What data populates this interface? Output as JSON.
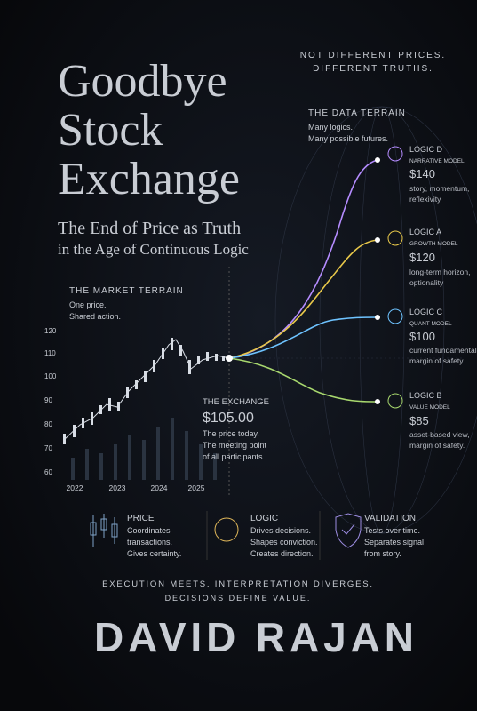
{
  "tagline": [
    "NOT DIFFERENT PRICES.",
    "DIFFERENT TRUTHS."
  ],
  "title": [
    "Goodbye",
    "Stock",
    "Exchange"
  ],
  "subtitle": [
    "The End of Price as Truth",
    "in the Age of Continuous Logic"
  ],
  "data_terrain": {
    "heading": "THE DATA TERRAIN",
    "lines": [
      "Many logics.",
      "Many possible futures."
    ]
  },
  "market_terrain": {
    "heading": "THE MARKET TERRAIN",
    "lines": [
      "One price.",
      "Shared action."
    ]
  },
  "mini_chart": {
    "yticks": [
      120,
      110,
      100,
      90,
      80,
      70,
      60
    ],
    "xlabels": [
      "2022",
      "2023",
      "2024",
      "2025"
    ]
  },
  "exchange": {
    "heading": "THE EXCHANGE",
    "price": "$105.00",
    "lines": [
      "The price today.",
      "The meeting point",
      "of all participants."
    ]
  },
  "logics": [
    {
      "name": "LOGIC D",
      "model": "NARRATIVE MODEL",
      "price": "$140",
      "lines": [
        "story, momentum,",
        "reflexivity"
      ]
    },
    {
      "name": "LOGIC A",
      "model": "GROWTH MODEL",
      "price": "$120",
      "lines": [
        "long-term horizon,",
        "optionality"
      ]
    },
    {
      "name": "LOGIC C",
      "model": "QUANT MODEL",
      "price": "$100",
      "lines": [
        "current fundamentals,",
        "margin of safety"
      ]
    },
    {
      "name": "LOGIC B",
      "model": "VALUE MODEL",
      "price": "$85",
      "lines": [
        "asset-based view,",
        "margin of safety."
      ]
    }
  ],
  "pillars": [
    {
      "title": "PRICE",
      "lines": [
        "Coordinates",
        "transactions.",
        "Gives certainty."
      ]
    },
    {
      "title": "LOGIC",
      "lines": [
        "Drives decisions.",
        "Shapes conviction.",
        "Creates direction."
      ]
    },
    {
      "title": "VALIDATION",
      "lines": [
        "Tests over time.",
        "Separates signal",
        "from story."
      ]
    }
  ],
  "footer": [
    "EXECUTION MEETS.  INTERPRETATION DIVERGES.",
    "DECISIONS DEFINE VALUE."
  ],
  "author": "DAVID RAJAN"
}
